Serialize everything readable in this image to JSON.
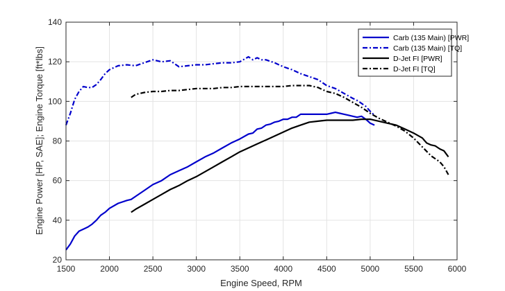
{
  "chart_data": {
    "type": "line",
    "title": "",
    "xlabel": "Engine Speed, RPM",
    "ylabel": "Engine Power [HP, SAE]; Engine Torque [ft*lbs]",
    "xlim": [
      1500,
      6000
    ],
    "ylim": [
      20,
      140
    ],
    "xticks": [
      1500,
      2000,
      2500,
      3000,
      3500,
      4000,
      4500,
      5000,
      5500,
      6000
    ],
    "yticks": [
      20,
      40,
      60,
      80,
      100,
      120,
      140
    ],
    "grid": true,
    "legend_position": "top-right",
    "series": [
      {
        "name": "Carb (135 Main) [PWR]",
        "color": "#0000cc",
        "style": "solid",
        "x": [
          1500,
          1550,
          1600,
          1650,
          1700,
          1750,
          1800,
          1850,
          1900,
          1950,
          2000,
          2100,
          2200,
          2250,
          2300,
          2400,
          2500,
          2600,
          2700,
          2800,
          2900,
          3000,
          3100,
          3200,
          3300,
          3400,
          3500,
          3600,
          3650,
          3700,
          3750,
          3800,
          3850,
          3900,
          3950,
          4000,
          4050,
          4100,
          4150,
          4200,
          4300,
          4400,
          4500,
          4550,
          4600,
          4650,
          4700,
          4750,
          4800,
          4850,
          4900,
          4950,
          5000,
          5050
        ],
        "y": [
          25,
          28,
          32,
          34.5,
          35.5,
          36.5,
          38,
          40,
          42.5,
          44,
          46,
          48.5,
          50,
          50.5,
          52,
          55,
          58,
          60,
          63,
          65,
          67,
          69.5,
          72,
          74,
          76.5,
          79,
          81,
          83.5,
          84,
          86,
          86.5,
          88,
          88.5,
          89.5,
          90,
          91,
          91,
          92,
          92,
          93.5,
          93.5,
          93.5,
          93.5,
          94,
          94.5,
          94,
          93.5,
          93,
          92.5,
          92,
          92.5,
          91,
          89,
          88
        ]
      },
      {
        "name": "Carb (135 Main) [TQ]",
        "color": "#0000cc",
        "style": "dashdot",
        "x": [
          1500,
          1550,
          1600,
          1650,
          1700,
          1750,
          1800,
          1850,
          1900,
          1950,
          2000,
          2100,
          2200,
          2300,
          2400,
          2500,
          2600,
          2700,
          2800,
          2900,
          3000,
          3100,
          3200,
          3300,
          3400,
          3500,
          3600,
          3650,
          3700,
          3750,
          3800,
          3900,
          4000,
          4100,
          4200,
          4300,
          4400,
          4500,
          4600,
          4700,
          4800,
          4850,
          4900,
          4950,
          5000,
          5050
        ],
        "y": [
          88,
          94,
          101,
          105,
          107.5,
          107,
          107,
          108.5,
          111,
          114,
          116,
          118,
          118.5,
          118,
          119.5,
          121,
          120,
          120.5,
          117.5,
          118,
          118.5,
          118.5,
          119,
          119.5,
          119.5,
          120,
          122.5,
          121,
          122,
          121,
          121,
          119.5,
          117.5,
          116,
          114,
          112.5,
          111,
          108,
          106.5,
          104,
          101.5,
          100.5,
          99,
          97.5,
          95,
          93
        ]
      },
      {
        "name": "D-Jet FI [PWR]",
        "color": "#000000",
        "style": "solid",
        "x": [
          2250,
          2300,
          2400,
          2500,
          2600,
          2700,
          2800,
          2900,
          3000,
          3100,
          3200,
          3300,
          3400,
          3500,
          3600,
          3700,
          3800,
          3900,
          4000,
          4100,
          4200,
          4300,
          4400,
          4500,
          4600,
          4700,
          4800,
          4900,
          5000,
          5100,
          5200,
          5300,
          5400,
          5500,
          5600,
          5650,
          5700,
          5750,
          5800,
          5850,
          5900
        ],
        "y": [
          44,
          45.5,
          48,
          50.5,
          53,
          55.5,
          57.5,
          60,
          62,
          64.5,
          67,
          69.5,
          72,
          74.5,
          76.5,
          78.5,
          80.5,
          82.5,
          84.5,
          86.5,
          88,
          89.5,
          90,
          90.5,
          90.5,
          90.5,
          90.5,
          91,
          91,
          90,
          89,
          88,
          86,
          84,
          81.5,
          79,
          78,
          77.5,
          76,
          75,
          72
        ]
      },
      {
        "name": "D-Jet FI [TQ]",
        "color": "#000000",
        "style": "dashdot",
        "x": [
          2250,
          2300,
          2400,
          2500,
          2600,
          2700,
          2800,
          2900,
          3000,
          3100,
          3200,
          3300,
          3400,
          3500,
          3600,
          3700,
          3800,
          3900,
          4000,
          4100,
          4200,
          4300,
          4400,
          4500,
          4600,
          4700,
          4800,
          4900,
          5000,
          5100,
          5200,
          5300,
          5400,
          5500,
          5600,
          5700,
          5800,
          5850,
          5900
        ],
        "y": [
          102,
          103.5,
          104.5,
          105,
          105,
          105.5,
          105.5,
          106,
          106.5,
          106.5,
          106.5,
          107,
          107,
          107.5,
          107.5,
          107.5,
          107.5,
          107.5,
          107.5,
          108,
          108,
          108,
          107,
          105,
          104,
          102,
          99.5,
          97,
          94,
          91.5,
          89.5,
          87.5,
          85,
          81.5,
          77,
          72.5,
          69.5,
          67,
          63
        ]
      }
    ]
  }
}
